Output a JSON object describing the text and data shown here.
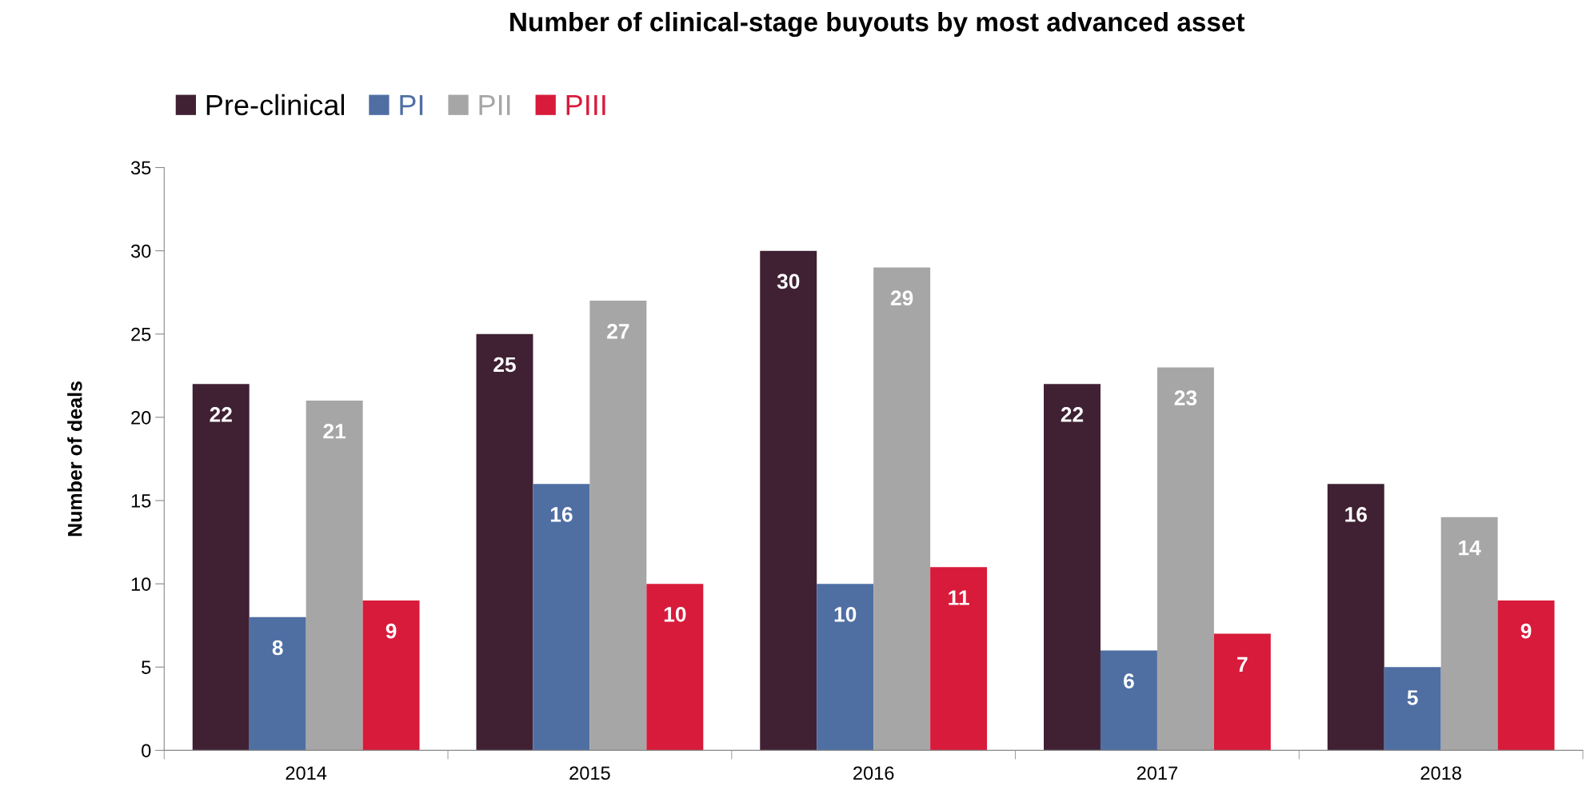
{
  "chart_data": {
    "type": "bar",
    "title": "Number of clinical-stage buyouts by most advanced asset",
    "ylabel": "Number of deals",
    "categories": [
      "2014",
      "2015",
      "2016",
      "2017",
      "2018"
    ],
    "series": [
      {
        "name": "Pre-clinical",
        "color": "#3f2133",
        "values": [
          22,
          25,
          30,
          22,
          16
        ]
      },
      {
        "name": "PI",
        "color": "#4f6fa3",
        "values": [
          8,
          16,
          10,
          6,
          5
        ]
      },
      {
        "name": "PII",
        "color": "#a6a6a6",
        "values": [
          21,
          27,
          29,
          23,
          14
        ]
      },
      {
        "name": "PIII",
        "color": "#d81b3b",
        "values": [
          9,
          10,
          11,
          7,
          9
        ]
      }
    ],
    "ylim": [
      0,
      35
    ],
    "yticks": [
      0,
      5,
      10,
      15,
      20,
      25,
      30,
      35
    ],
    "grid": false,
    "legend": "top left",
    "data_labels": true
  }
}
